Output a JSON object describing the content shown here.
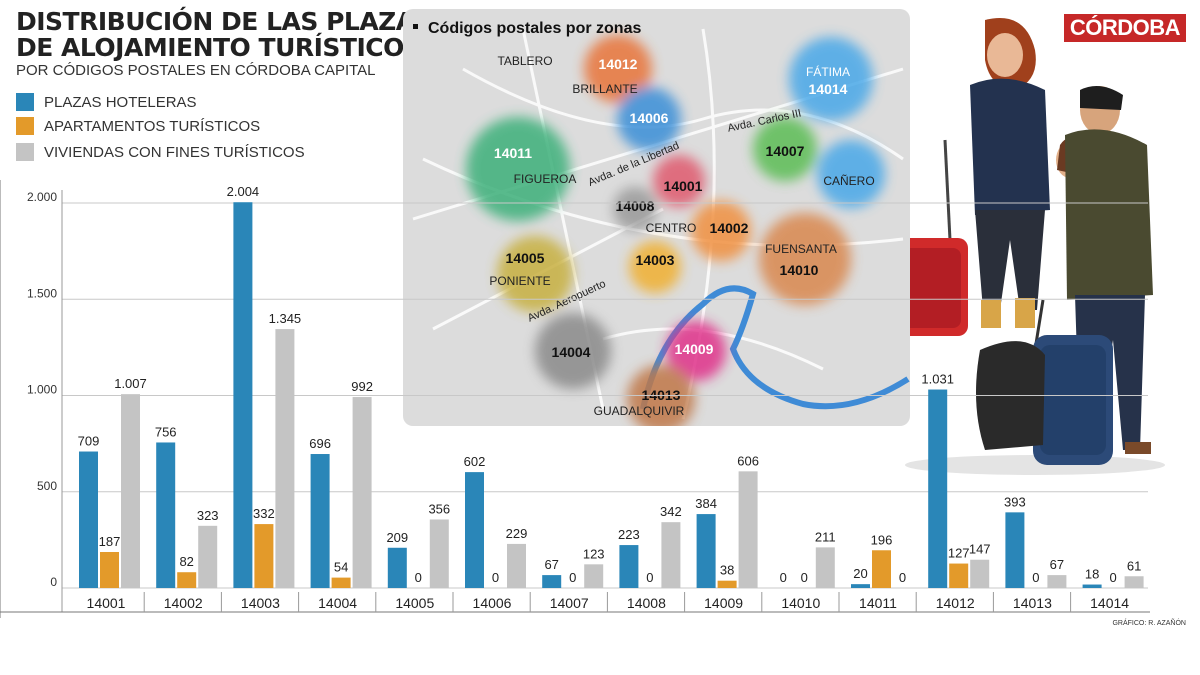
{
  "header": {
    "title_line1": "DISTRIBUCIÓN DE LAS PLAZAS",
    "title_line2": "DE ALOJAMIENTO TURÍSTICO",
    "subtitle": "POR CÓDIGOS POSTALES EN CÓRDOBA CAPITAL",
    "brand": "CÓRDOBA",
    "credit": "GRÁFICO: R. AZAÑÓN"
  },
  "map": {
    "title": "Códigos postales por zonas",
    "zones": [
      {
        "code": "14012",
        "name": "TABLERO",
        "color": "#e8743b"
      },
      {
        "code": "",
        "name": "BRILLANTE",
        "color": ""
      },
      {
        "code": "14014",
        "name": "FÁTIMA",
        "color": "#4aa8e8"
      },
      {
        "code": "14006",
        "name": "",
        "color": "#3a8fd8"
      },
      {
        "code": "14011",
        "name": "FIGUEROA",
        "color": "#3cb07a"
      },
      {
        "code": "14007",
        "name": "",
        "color": "#5cbd55"
      },
      {
        "code": "",
        "name": "CAÑERO",
        "color": "#4aa8e8"
      },
      {
        "code": "14001",
        "name": "",
        "color": "#e05a6e"
      },
      {
        "code": "14008",
        "name": "",
        "color": "#9a9a9a"
      },
      {
        "code": "14002",
        "name": "CENTRO",
        "color": "#f09040"
      },
      {
        "code": "14010",
        "name": "FUENSANTA",
        "color": "#d98850"
      },
      {
        "code": "14005",
        "name": "PONIENTE",
        "color": "#c8b040"
      },
      {
        "code": "14003",
        "name": "",
        "color": "#f0b030"
      },
      {
        "code": "14004",
        "name": "",
        "color": "#8a8a8a"
      },
      {
        "code": "14009",
        "name": "",
        "color": "#e0308a"
      },
      {
        "code": "14013",
        "name": "GUADALQUIVIR",
        "color": "#c0784a"
      }
    ],
    "streets": [
      "Avda. Carlos III",
      "Avda. de la Libertad",
      "Avda. Aeropuerto"
    ]
  },
  "chart_data": {
    "type": "bar",
    "title": "DISTRIBUCIÓN DE LAS PLAZAS DE ALOJAMIENTO TURÍSTICO",
    "subtitle": "POR CÓDIGOS POSTALES EN CÓRDOBA CAPITAL",
    "categories": [
      "14001",
      "14002",
      "14003",
      "14004",
      "14005",
      "14006",
      "14007",
      "14008",
      "14009",
      "14010",
      "14011",
      "14012",
      "14013",
      "14014"
    ],
    "series": [
      {
        "name": "PLAZAS HOTELERAS",
        "color": "#2a86b8",
        "values": [
          709,
          756,
          2004,
          696,
          209,
          602,
          67,
          223,
          384,
          0,
          20,
          1031,
          393,
          18
        ],
        "labels": [
          "709",
          "756",
          "2.004",
          "696",
          "209",
          "602",
          "67",
          "223",
          "384",
          "0",
          "20",
          "1.031",
          "393",
          "18"
        ]
      },
      {
        "name": "APARTAMENTOS TURÍSTICOS",
        "color": "#e39a2a",
        "values": [
          187,
          82,
          332,
          54,
          0,
          0,
          0,
          0,
          38,
          0,
          196,
          127,
          0,
          0
        ],
        "labels": [
          "187",
          "82",
          "332",
          "54",
          "0",
          "0",
          "0",
          "0",
          "38",
          "0",
          "196",
          "127",
          "0",
          "0"
        ]
      },
      {
        "name": "VIVIENDAS CON FINES TURÍSTICOS",
        "color": "#c4c4c4",
        "values": [
          1007,
          323,
          1345,
          992,
          356,
          229,
          123,
          342,
          606,
          211,
          0,
          147,
          67,
          61
        ],
        "labels": [
          "1.007",
          "323",
          "1.345",
          "992",
          "356",
          "229",
          "123",
          "342",
          "606",
          "211",
          "0",
          "147",
          "67",
          "61"
        ]
      }
    ],
    "yticks": [
      0,
      500,
      1000,
      1500,
      2000
    ],
    "ytick_labels": [
      "0",
      "500",
      "1.000",
      "1.500",
      "2.000"
    ],
    "ylim": [
      0,
      2000
    ],
    "grid": true,
    "legend": "top-left"
  }
}
